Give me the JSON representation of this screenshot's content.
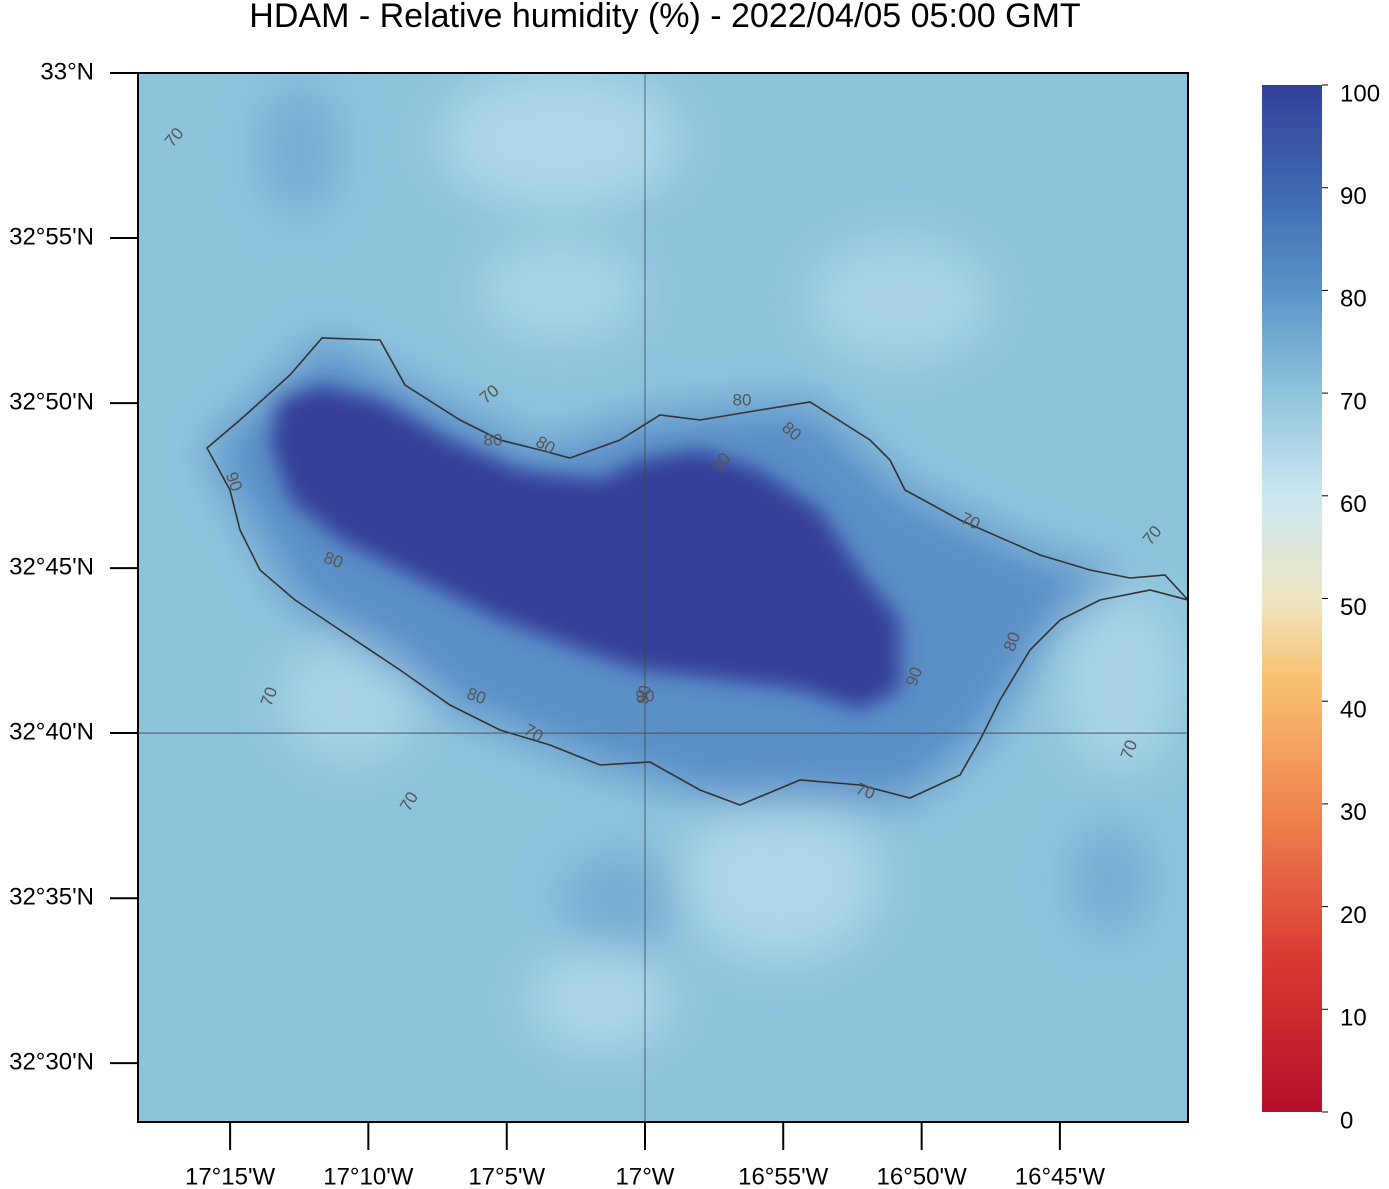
{
  "map": {
    "title": "HDAM - Relative humidity (%)  -  2022/04/05  05:00 GMT",
    "lonlim": [
      -17.3055,
      -16.6728
    ],
    "latlim": [
      32.4703,
      33.0
    ],
    "lon_ticks": [
      {
        "value": -17.25,
        "label": "17°15'W"
      },
      {
        "value": -17.1667,
        "label": "17°10'W"
      },
      {
        "value": -17.0833,
        "label": "17°5'W"
      },
      {
        "value": -17.0,
        "label": "17°W"
      },
      {
        "value": -16.9167,
        "label": "16°55'W"
      },
      {
        "value": -16.8333,
        "label": "16°50'W"
      },
      {
        "value": -16.75,
        "label": "16°45'W"
      }
    ],
    "lat_ticks": [
      {
        "value": 32.5,
        "label": "32°30'N"
      },
      {
        "value": 32.5833,
        "label": "32°35'N"
      },
      {
        "value": 32.6667,
        "label": "32°40'N"
      },
      {
        "value": 32.75,
        "label": "32°45'N"
      },
      {
        "value": 32.8333,
        "label": "32°50'N"
      },
      {
        "value": 32.9167,
        "label": "32°55'N"
      },
      {
        "value": 33.0,
        "label": "33°N"
      }
    ],
    "graticule": {
      "lon": -17.0,
      "lat": 32.6667
    },
    "contour_labels": [
      70,
      70,
      80,
      80,
      80,
      90,
      70,
      80,
      90,
      80,
      90,
      70,
      80,
      90,
      70,
      70,
      70,
      70,
      80,
      90,
      70
    ],
    "colorbar": {
      "lim": [
        0,
        100
      ],
      "ticks": [
        0,
        10,
        20,
        30,
        40,
        50,
        60,
        70,
        80,
        90,
        100
      ]
    }
  }
}
